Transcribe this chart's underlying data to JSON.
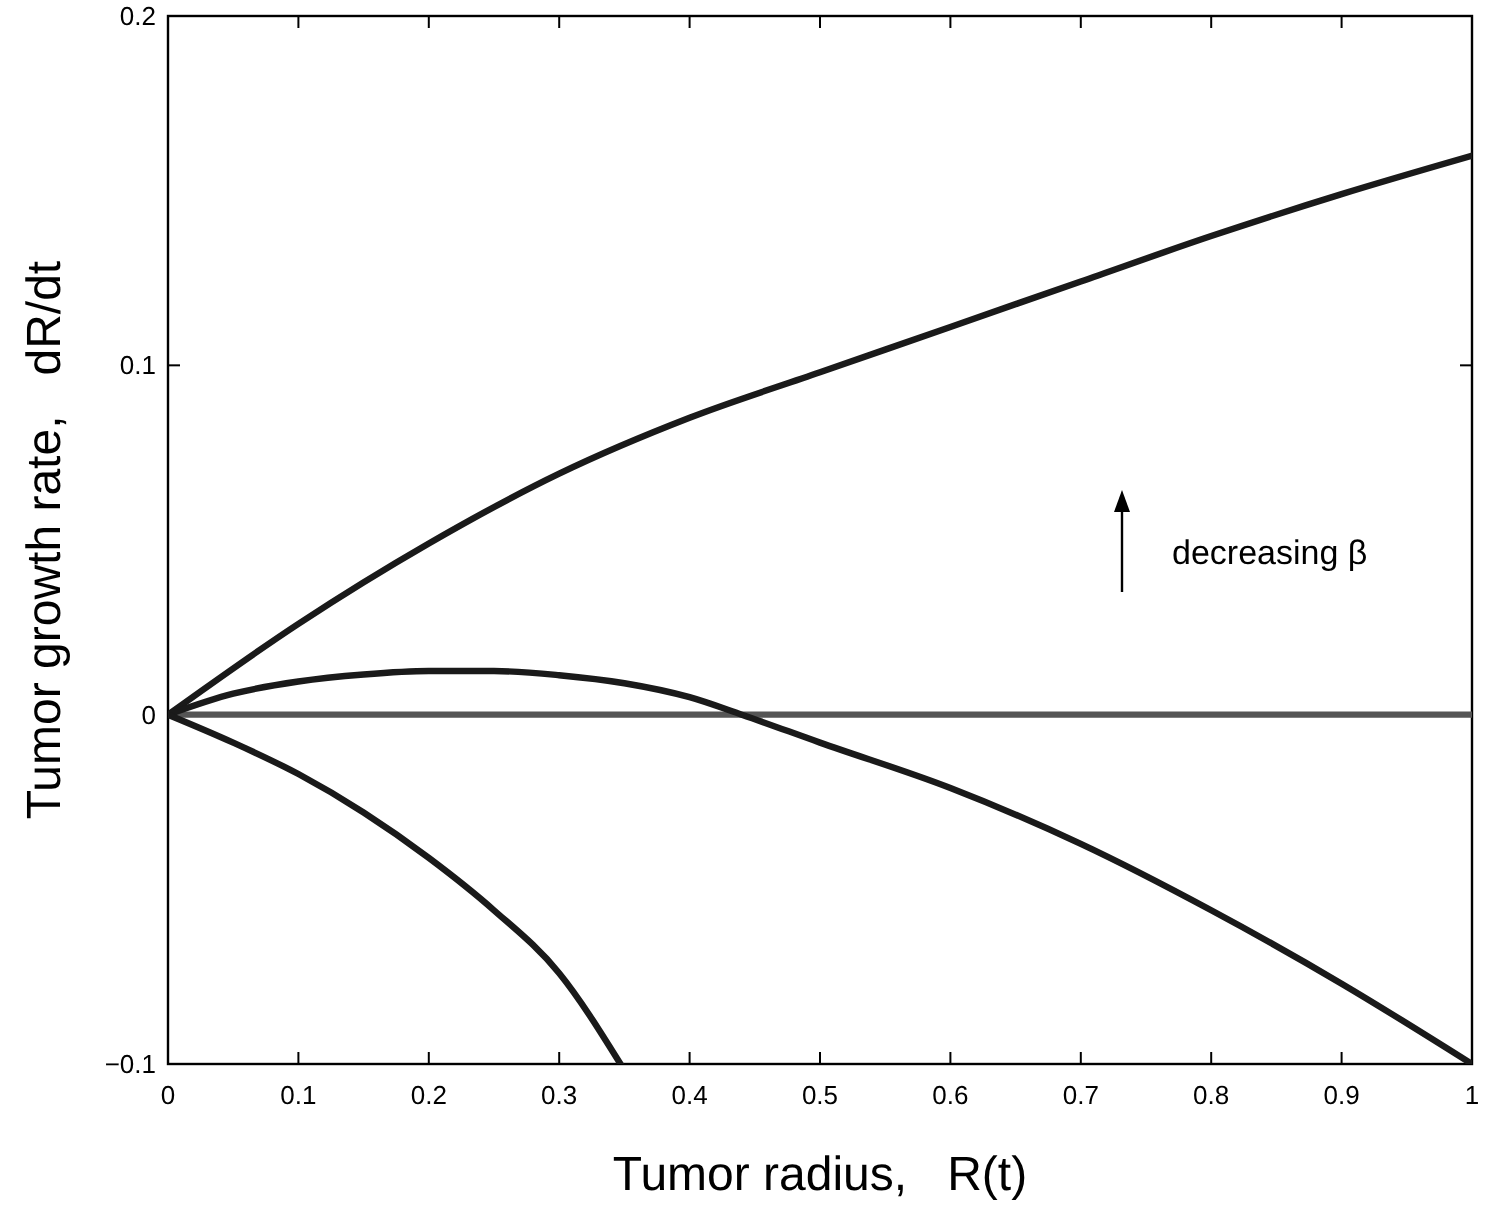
{
  "chart_data": {
    "type": "line",
    "xlabel": "Tumor radius,   R(t)",
    "ylabel": "Tumor growth rate,   dR/dt",
    "xlim": [
      0,
      1
    ],
    "ylim": [
      -0.1,
      0.2
    ],
    "xticks": [
      0,
      0.1,
      0.2,
      0.3,
      0.4,
      0.5,
      0.6,
      0.7,
      0.8,
      0.9,
      1
    ],
    "yticks": [
      {
        "value": -0.1,
        "label": "−0.1"
      },
      0,
      0.1,
      0.2
    ],
    "series": [
      {
        "color": "#1a1a1a",
        "x": [
          0,
          0.1,
          0.2,
          0.3,
          0.4,
          0.5,
          0.6,
          0.7,
          0.8,
          0.9,
          1
        ],
        "values": [
          0,
          0.026,
          0.049,
          0.069,
          0.085,
          0.098,
          0.111,
          0.124,
          0.137,
          0.149,
          0.16
        ]
      },
      {
        "color": "#1a1a1a",
        "x": [
          0,
          0.05,
          0.1,
          0.15,
          0.2,
          0.25,
          0.3,
          0.35,
          0.4,
          0.44,
          0.5,
          0.6,
          0.7,
          0.8,
          0.9,
          1
        ],
        "values": [
          0,
          0.006,
          0.0095,
          0.0115,
          0.0125,
          0.0125,
          0.0113,
          0.009,
          0.005,
          0,
          -0.008,
          -0.021,
          -0.037,
          -0.056,
          -0.077,
          -0.1
        ]
      },
      {
        "color": "#1a1a1a",
        "x": [
          0,
          0.05,
          0.1,
          0.15,
          0.2,
          0.25,
          0.3,
          0.347
        ],
        "values": [
          0,
          -0.008,
          -0.017,
          -0.028,
          -0.041,
          -0.056,
          -0.074,
          -0.1
        ]
      }
    ],
    "ref_lines": [
      {
        "axis": "y",
        "value": 0,
        "color": "#555555"
      }
    ],
    "annotations": [
      "decreasing β"
    ],
    "grid": false,
    "marker": "none",
    "line_style": "solid"
  }
}
